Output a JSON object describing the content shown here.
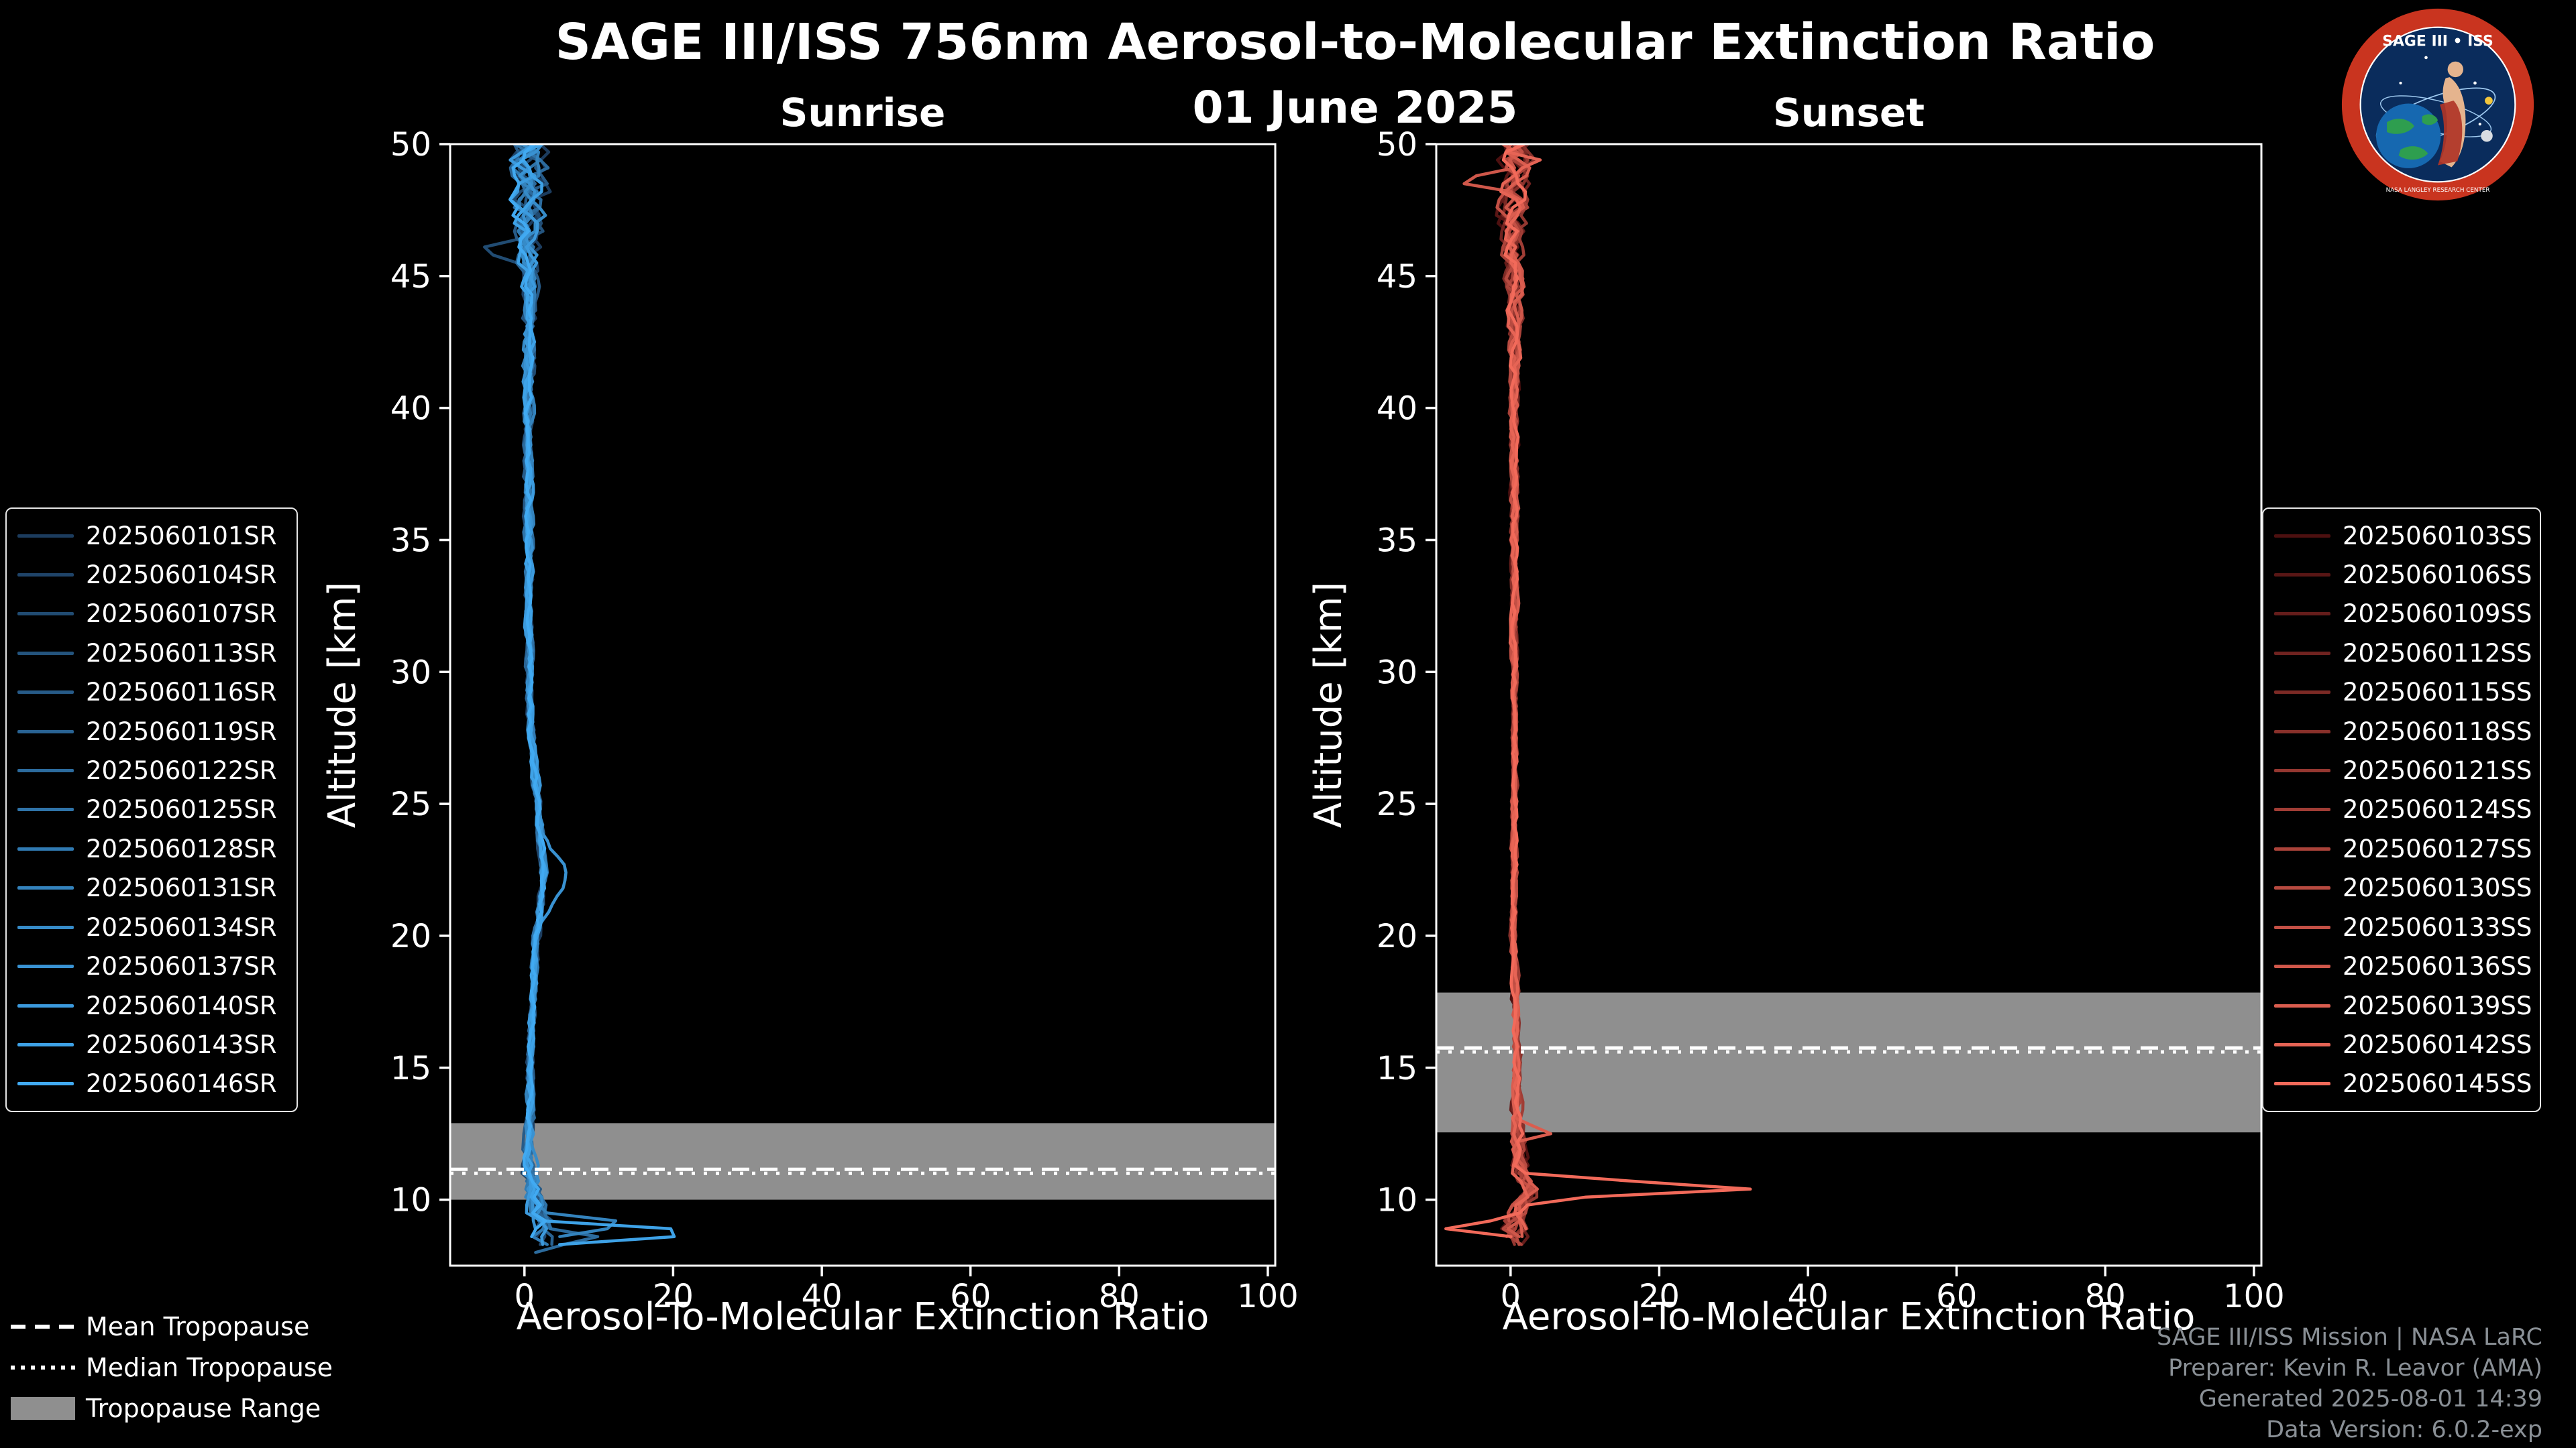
{
  "header": {
    "title": "SAGE III/ISS 756nm Aerosol-to-Molecular Extinction Ratio",
    "date": "01 June 2025"
  },
  "logo": {
    "arc_title": "SAGE III • ISS",
    "ring_text": "NASA LANGLEY RESEARCH CENTER"
  },
  "tropopause_legend": {
    "items": [
      {
        "label": "Mean Tropopause",
        "style": "dashed"
      },
      {
        "label": "Median Tropopause",
        "style": "dotted"
      },
      {
        "label": "Tropopause Range",
        "style": "band"
      }
    ],
    "band_color": "#8f8f8f"
  },
  "credits": {
    "lines": [
      "SAGE III/ISS Mission | NASA LaRC",
      "Preparer: Kevin R. Leavor (AMA)",
      "Generated 2025-08-01 14:39",
      "Data Version: 6.0.2-exp"
    ]
  },
  "chart_data": [
    {
      "type": "line",
      "panel": "sunrise",
      "title": "Sunrise",
      "xlabel": "Aerosol-To-Molecular Extinction Ratio",
      "ylabel": "Altitude [km]",
      "xlim": [
        -10,
        101
      ],
      "ylim": [
        7.5,
        50
      ],
      "xticks": [
        0,
        20,
        40,
        60,
        80,
        100
      ],
      "yticks": [
        10,
        15,
        20,
        25,
        30,
        35,
        40,
        45,
        50
      ],
      "grid": false,
      "tropopause": {
        "mean_km": 11.15,
        "median_km": 11.0,
        "range_km": [
          10.0,
          12.9
        ],
        "band_color": "#8f8f8f"
      },
      "mean_profile": [
        [
          8.2,
          2.2
        ],
        [
          9.0,
          2.6
        ],
        [
          10.0,
          1.4
        ],
        [
          11.0,
          0.8
        ],
        [
          12.0,
          0.6
        ],
        [
          15.0,
          0.8
        ],
        [
          20.0,
          1.6
        ],
        [
          22.0,
          2.6
        ],
        [
          25.0,
          1.8
        ],
        [
          28.0,
          0.8
        ],
        [
          35.0,
          0.5
        ],
        [
          45.0,
          0.6
        ],
        [
          50.0,
          0.5
        ]
      ],
      "noise_profile": [
        [
          8.2,
          1.8
        ],
        [
          9.5,
          1.2
        ],
        [
          12.0,
          0.5
        ],
        [
          15.0,
          0.35
        ],
        [
          30.0,
          0.35
        ],
        [
          40.0,
          0.5
        ],
        [
          44.0,
          0.7
        ],
        [
          47.0,
          1.4
        ],
        [
          50.0,
          2.2
        ]
      ],
      "features": [
        {
          "series": 13,
          "altitude_km": 8.75,
          "width_km": 0.28,
          "peak": 23
        },
        {
          "series": 9,
          "altitude_km": 9.1,
          "width_km": 0.3,
          "peak": 12
        },
        {
          "series": 6,
          "altitude_km": 8.55,
          "width_km": 0.3,
          "peak": 9
        },
        {
          "series": 11,
          "altitude_km": 22.3,
          "width_km": 1.2,
          "peak": 3
        },
        {
          "series": 2,
          "altitude_km": 46.0,
          "width_km": 0.4,
          "peak": -6
        },
        {
          "series": 12,
          "altitude_km": 49.4,
          "width_km": 0.25,
          "peak": -4
        }
      ],
      "series": [
        {
          "label": "2025060101SR",
          "color": "#1c3c5e"
        },
        {
          "label": "2025060104SR",
          "color": "#1f4469"
        },
        {
          "label": "2025060107SR",
          "color": "#214c73"
        },
        {
          "label": "2025060113SR",
          "color": "#24547e"
        },
        {
          "label": "2025060116SR",
          "color": "#275b88"
        },
        {
          "label": "2025060119SR",
          "color": "#296393"
        },
        {
          "label": "2025060122SR",
          "color": "#2c6b9d"
        },
        {
          "label": "2025060125SR",
          "color": "#2f73a8"
        },
        {
          "label": "2025060128SR",
          "color": "#317bb3"
        },
        {
          "label": "2025060131SR",
          "color": "#3483bd"
        },
        {
          "label": "2025060134SR",
          "color": "#368bc8"
        },
        {
          "label": "2025060137SR",
          "color": "#3992d2"
        },
        {
          "label": "2025060140SR",
          "color": "#3c9add"
        },
        {
          "label": "2025060143SR",
          "color": "#3ea2e7"
        },
        {
          "label": "2025060146SR",
          "color": "#41aaf2"
        }
      ]
    },
    {
      "type": "line",
      "panel": "sunset",
      "title": "Sunset",
      "xlabel": "Aerosol-To-Molecular Extinction Ratio",
      "ylabel": "Altitude [km]",
      "xlim": [
        -10,
        101
      ],
      "ylim": [
        7.5,
        50
      ],
      "xticks": [
        0,
        20,
        40,
        60,
        80,
        100
      ],
      "yticks": [
        10,
        15,
        20,
        25,
        30,
        35,
        40,
        45,
        50
      ],
      "grid": false,
      "tropopause": {
        "mean_km": 15.75,
        "median_km": 15.6,
        "range_km": [
          12.55,
          17.85
        ],
        "band_color": "#8f8f8f"
      },
      "mean_profile": [
        [
          8.2,
          0.5
        ],
        [
          9.0,
          0.3
        ],
        [
          9.8,
          1.5
        ],
        [
          10.4,
          2.5
        ],
        [
          11.0,
          1.5
        ],
        [
          12.0,
          1.2
        ],
        [
          13.0,
          0.8
        ],
        [
          15.0,
          0.8
        ],
        [
          20.0,
          0.5
        ],
        [
          30.0,
          0.5
        ],
        [
          40.0,
          0.5
        ],
        [
          50.0,
          0.5
        ]
      ],
      "noise_profile": [
        [
          8.2,
          1.5
        ],
        [
          10.0,
          1.0
        ],
        [
          12.0,
          0.8
        ],
        [
          14.0,
          0.5
        ],
        [
          16.0,
          0.35
        ],
        [
          30.0,
          0.3
        ],
        [
          42.0,
          0.5
        ],
        [
          46.0,
          1.0
        ],
        [
          50.0,
          2.0
        ]
      ],
      "features": [
        {
          "series": 14,
          "altitude_km": 10.45,
          "width_km": 0.3,
          "peak": 30
        },
        {
          "series": 14,
          "altitude_km": 8.95,
          "width_km": 0.25,
          "peak": -10
        },
        {
          "series": 12,
          "altitude_km": 12.6,
          "width_km": 0.25,
          "peak": 5
        },
        {
          "series": 11,
          "altitude_km": 48.6,
          "width_km": 0.3,
          "peak": -7
        },
        {
          "series": 13,
          "altitude_km": 49.3,
          "width_km": 0.25,
          "peak": 4
        }
      ],
      "series": [
        {
          "label": "2025060103SS",
          "color": "#4d1010"
        },
        {
          "label": "2025060106SS",
          "color": "#591615"
        },
        {
          "label": "2025060109SS",
          "color": "#651d1b"
        },
        {
          "label": "2025060112SS",
          "color": "#702320"
        },
        {
          "label": "2025060115SS",
          "color": "#7c2a25"
        },
        {
          "label": "2025060118SS",
          "color": "#88302a"
        },
        {
          "label": "2025060121SS",
          "color": "#943730"
        },
        {
          "label": "2025060124SS",
          "color": "#a03d35"
        },
        {
          "label": "2025060127SS",
          "color": "#ab433a"
        },
        {
          "label": "2025060130SS",
          "color": "#b74a40"
        },
        {
          "label": "2025060133SS",
          "color": "#c35045"
        },
        {
          "label": "2025060136SS",
          "color": "#cf574a"
        },
        {
          "label": "2025060139SS",
          "color": "#da5d4f"
        },
        {
          "label": "2025060142SS",
          "color": "#e66455"
        },
        {
          "label": "2025060145SS",
          "color": "#f26a5a"
        }
      ]
    }
  ]
}
